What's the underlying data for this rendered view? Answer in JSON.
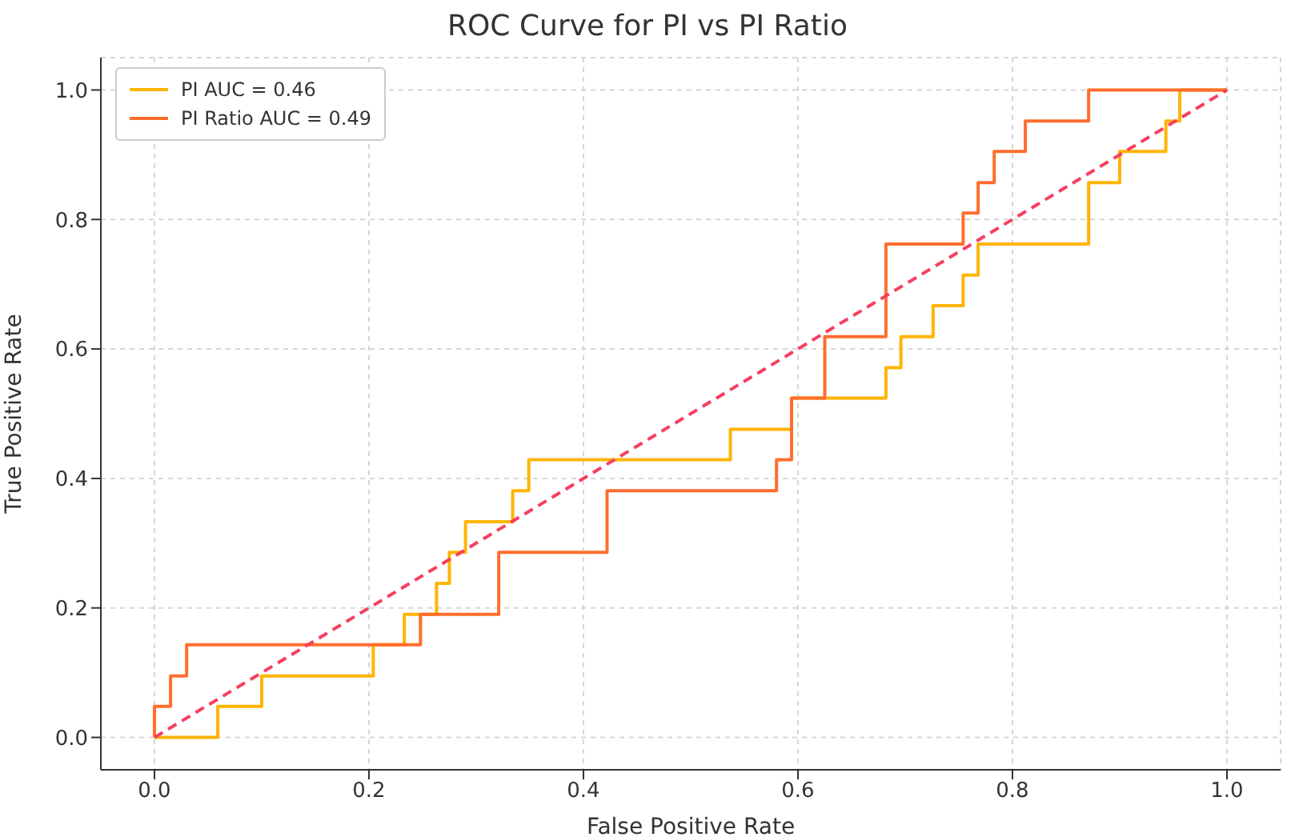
{
  "chart_data": {
    "type": "line",
    "title": "ROC Curve for PI vs PI Ratio",
    "xlabel": "False Positive Rate",
    "ylabel": "True Positive Rate",
    "xlim": [
      -0.05,
      1.05
    ],
    "ylim": [
      -0.05,
      1.05
    ],
    "xticks": [
      {
        "value": 0,
        "label": "0.0"
      },
      0.2,
      0.4,
      0.6,
      0.8,
      {
        "value": 1,
        "label": "1.0"
      }
    ],
    "yticks": [
      {
        "value": 0,
        "label": "0.0"
      },
      0.2,
      0.4,
      0.6,
      0.8,
      {
        "value": 1,
        "label": "1.0"
      }
    ],
    "grid": true,
    "legend": "top left",
    "marker": "none",
    "series": [
      {
        "name": "PI AUC = 0.46",
        "color": "#ffb400",
        "line_style": "solid",
        "x": [
          0,
          0.059,
          0.059,
          0.1,
          0.1,
          0.204,
          0.204,
          0.233,
          0.233,
          0.263,
          0.263,
          0.275,
          0.275,
          0.29,
          0.29,
          0.334,
          0.334,
          0.349,
          0.349,
          0.537,
          0.537,
          0.594,
          0.594,
          0.682,
          0.682,
          0.696,
          0.696,
          0.726,
          0.726,
          0.754,
          0.754,
          0.768,
          0.768,
          0.871,
          0.871,
          0.9,
          0.9,
          0.943,
          0.943,
          0.956,
          0.956,
          1.0
        ],
        "values": [
          0,
          0,
          0.048,
          0.048,
          0.095,
          0.095,
          0.143,
          0.143,
          0.19,
          0.19,
          0.238,
          0.238,
          0.286,
          0.286,
          0.333,
          0.333,
          0.381,
          0.381,
          0.429,
          0.429,
          0.476,
          0.476,
          0.524,
          0.524,
          0.571,
          0.571,
          0.619,
          0.619,
          0.667,
          0.667,
          0.714,
          0.714,
          0.762,
          0.762,
          0.857,
          0.857,
          0.905,
          0.905,
          0.952,
          0.952,
          1.0,
          1.0
        ]
      },
      {
        "name": "PI Ratio AUC = 0.49",
        "color": "#ff6d2e",
        "line_style": "solid",
        "x": [
          0,
          0,
          0.015,
          0.015,
          0.03,
          0.03,
          0.248,
          0.248,
          0.321,
          0.321,
          0.422,
          0.422,
          0.58,
          0.58,
          0.594,
          0.594,
          0.625,
          0.625,
          0.682,
          0.682,
          0.754,
          0.754,
          0.768,
          0.768,
          0.783,
          0.783,
          0.812,
          0.812,
          0.871,
          0.871,
          1.0
        ],
        "values": [
          0,
          0.048,
          0.048,
          0.095,
          0.095,
          0.143,
          0.143,
          0.19,
          0.19,
          0.286,
          0.286,
          0.381,
          0.381,
          0.429,
          0.429,
          0.524,
          0.524,
          0.619,
          0.619,
          0.762,
          0.762,
          0.81,
          0.81,
          0.857,
          0.857,
          0.905,
          0.905,
          0.952,
          0.952,
          1.0,
          1.0
        ]
      },
      {
        "color": "#f63f5f",
        "line_style": "dashed",
        "x": [
          0,
          1
        ],
        "values": [
          0,
          1
        ]
      }
    ]
  }
}
